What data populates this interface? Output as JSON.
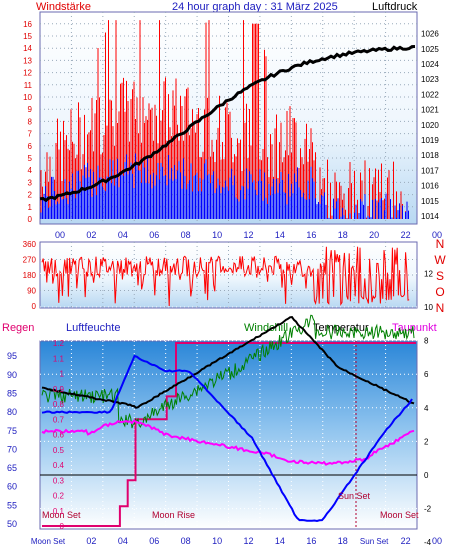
{
  "header": {
    "wind_label": "Windstärke",
    "title": "24 hour graph day : 31 März 2025",
    "pressure_label": "Luftdruck"
  },
  "panel_wind": {
    "y_ticks_left": [
      "16",
      "15",
      "14",
      "13",
      "12",
      "11",
      "10",
      "9",
      "8",
      "7",
      "6",
      "5",
      "4",
      "3",
      "2",
      "1",
      "0"
    ],
    "y_ticks_right": [
      "1026",
      "1025",
      "1024",
      "1023",
      "1022",
      "1021",
      "1020",
      "1019",
      "1018",
      "1017",
      "1016",
      "1015",
      "1014"
    ],
    "x_ticks": [
      "00",
      "02",
      "04",
      "06",
      "08",
      "10",
      "12",
      "14",
      "16",
      "18",
      "20",
      "22",
      "00"
    ]
  },
  "panel_dir": {
    "y_ticks_left": [
      "360",
      "270",
      "180",
      "90",
      "0"
    ],
    "compass": [
      "N",
      "W",
      "S",
      "O",
      "N"
    ]
  },
  "panel_temp": {
    "legend": {
      "rain": "Regen",
      "humidity": "Luftfeuchte",
      "windchill": "Windchill",
      "temperature": "Temperatur",
      "dewpoint": "Taupunkt"
    },
    "rain_ticks": [
      "1.2",
      "1.1",
      "1",
      "0.9",
      "0.8",
      "0.7",
      "0.6",
      "0.5",
      "0.4",
      "0.3",
      "0.2",
      "0.1",
      "0"
    ],
    "humidity_ticks": [
      "95",
      "90",
      "85",
      "80",
      "75",
      "70",
      "65",
      "60",
      "55",
      "50"
    ],
    "temp_ticks": [
      "12",
      "10",
      "8",
      "6",
      "4",
      "2",
      "0",
      "-2",
      "-4"
    ],
    "x_ticks": [
      "Moon Set",
      "02",
      "04",
      "06",
      "08",
      "10",
      "12",
      "14",
      "16",
      "18",
      "Sun Set",
      "22",
      "00"
    ],
    "annotations": {
      "moon_set_left": "Moon Set",
      "moon_rise": "Moon Rise",
      "sun_set": "Sun Set",
      "moon_set_right": "Moon Set"
    }
  },
  "colors": {
    "wind_gust": "#ff0000",
    "wind_avg": "#0000ff",
    "pressure": "#000000",
    "temperature": "#000000",
    "windchill": "#008000",
    "dewpoint": "#ff00ff",
    "humidity": "#0000ff",
    "rain": "#e0006e",
    "frame": "#3030c0"
  }
}
